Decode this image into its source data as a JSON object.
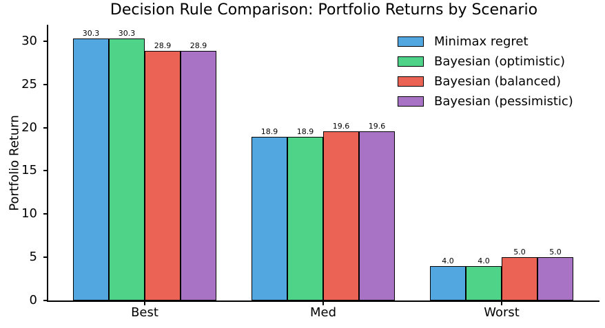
{
  "figure": {
    "background": "#ffffff",
    "text_color": "#000000",
    "spine_color": "#000000"
  },
  "chart_data": {
    "type": "bar",
    "title": "Decision Rule Comparison: Portfolio Returns by Scenario",
    "ylabel": "Portfolio Return",
    "xlabel": "",
    "categories": [
      "Best",
      "Med",
      "Worst"
    ],
    "series": [
      {
        "name": "Minimax regret",
        "color": "#52a7e0",
        "values": [
          30.3,
          18.9,
          4.0
        ]
      },
      {
        "name": "Bayesian (optimistic)",
        "color": "#4ed389",
        "values": [
          30.3,
          18.9,
          4.0
        ]
      },
      {
        "name": "Bayesian (balanced)",
        "color": "#ea6355",
        "values": [
          28.9,
          19.6,
          5.0
        ]
      },
      {
        "name": "Bayesian (pessimistic)",
        "color": "#a973c5",
        "values": [
          28.9,
          19.6,
          5.0
        ]
      }
    ],
    "yticks": [
      0,
      5,
      10,
      15,
      20,
      25,
      30
    ],
    "ylim": [
      0,
      31.9
    ],
    "bar_edge_color": "#000000",
    "value_label_decimals": 1,
    "legend_position": "upper right",
    "legend_frame": false,
    "grid": false
  }
}
